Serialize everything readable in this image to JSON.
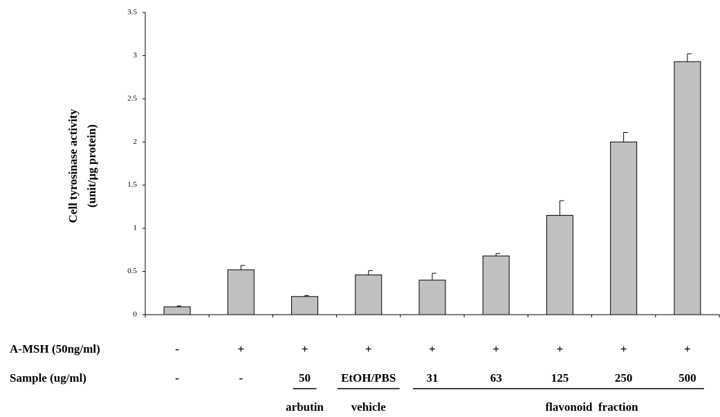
{
  "chart_data": {
    "type": "bar",
    "y_label": [
      "Cell tyrosinase activity",
      "(unit/μg protein)"
    ],
    "ylim": [
      0,
      3.5
    ],
    "yticks": [
      0,
      0.5,
      1,
      1.5,
      2,
      2.5,
      3,
      3.5
    ],
    "series": [
      {
        "color": "#c0c0c0",
        "values": [
          0.09,
          0.52,
          0.21,
          0.46,
          0.4,
          0.68,
          1.15,
          2.0,
          2.93
        ],
        "errors": [
          0.01,
          0.05,
          0.01,
          0.05,
          0.08,
          0.03,
          0.17,
          0.11,
          0.09
        ]
      }
    ],
    "rows": [
      {
        "label": "A-MSH (50ng/ml)",
        "values": [
          "-",
          "+",
          "+",
          "+",
          "+",
          "+",
          "+",
          "+",
          "+"
        ]
      },
      {
        "label": "Sample (ug/ml)",
        "values": [
          "-",
          "-",
          "50",
          "EtOH/PBS",
          "31",
          "63",
          "125",
          "250",
          "500"
        ]
      }
    ],
    "group_labels": [
      null,
      null,
      "arbutin",
      "vehicle",
      null,
      null,
      "flavonoid  fraction",
      null,
      null
    ]
  }
}
